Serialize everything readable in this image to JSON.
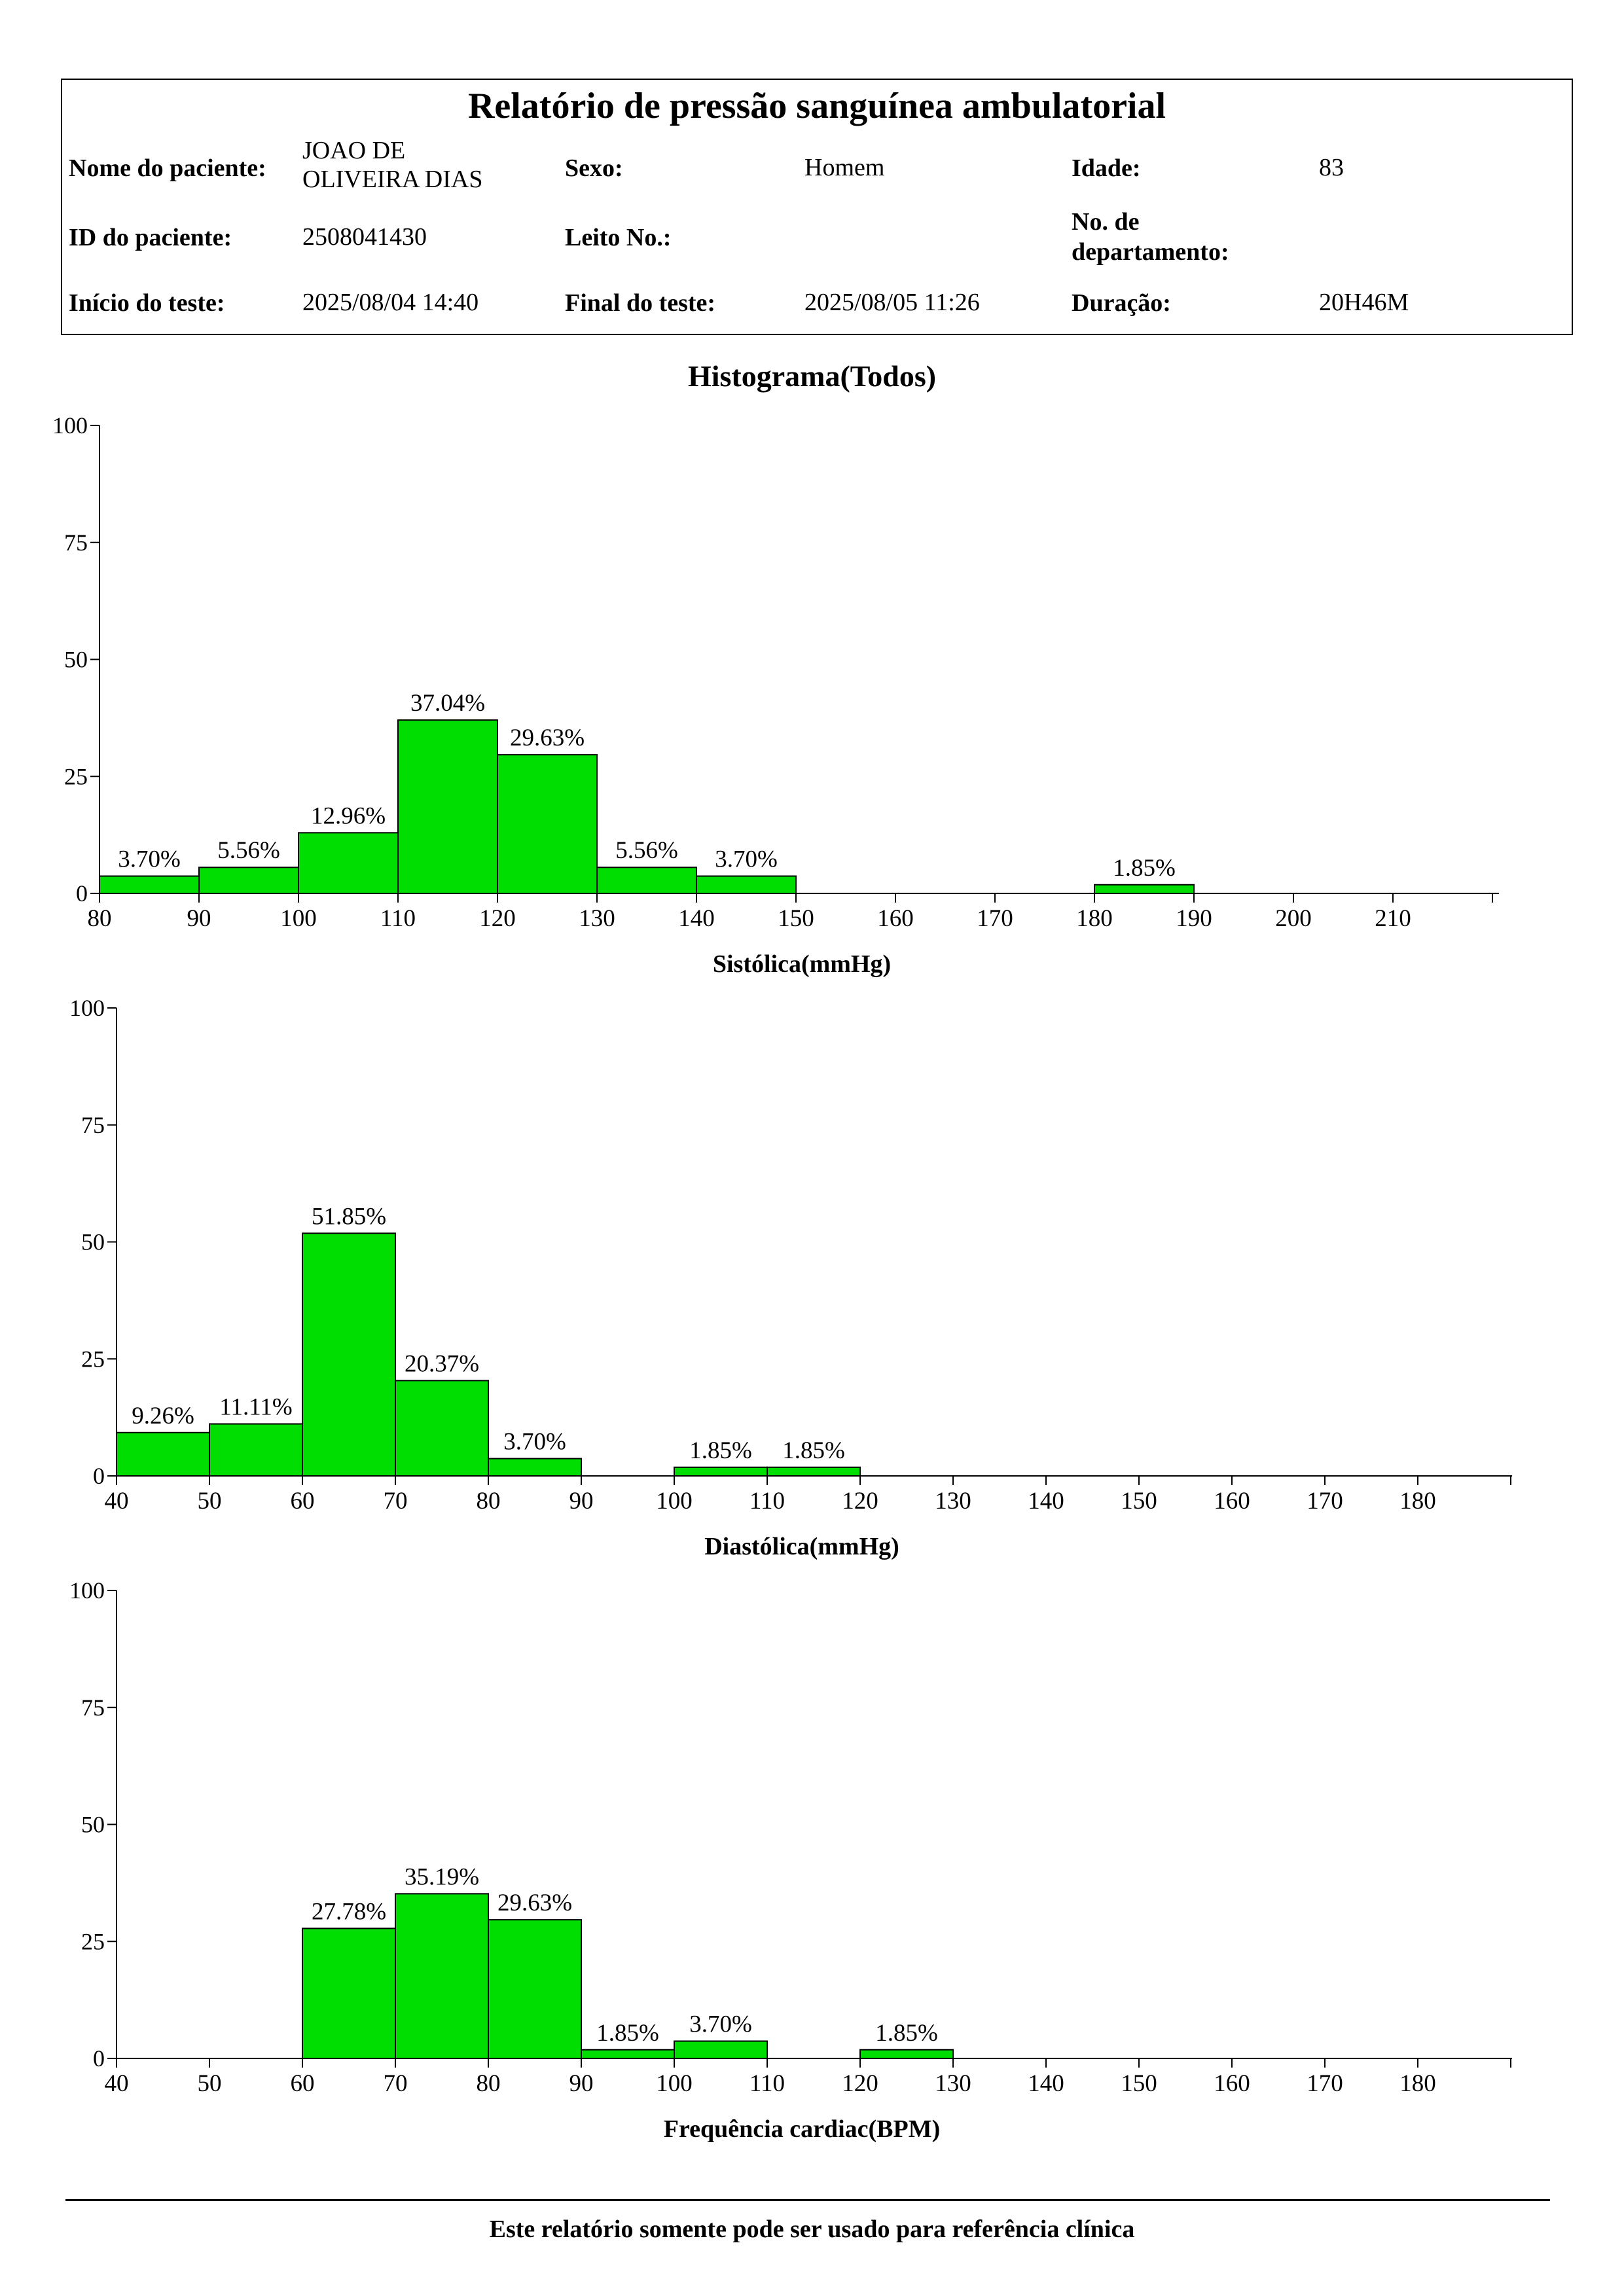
{
  "report": {
    "title": "Relatório de pressão sanguínea ambulatorial",
    "labels": {
      "patient_name": "Nome do paciente:",
      "sex": "Sexo:",
      "age": "Idade:",
      "patient_id": "ID do paciente:",
      "bed_no": "Leito No.:",
      "department_no": "No. de departamento:",
      "test_start": "Início do teste:",
      "test_end": "Final do teste:",
      "duration": "Duração:"
    },
    "values": {
      "patient_name": "JOAO DE OLIVEIRA DIAS",
      "sex": "Homem",
      "age": "83",
      "patient_id": "2508041430",
      "bed_no": "",
      "department_no": "",
      "test_start": "2025/08/04 14:40",
      "test_end": "2025/08/05 11:26",
      "duration": "20H46M"
    }
  },
  "histogram_title": "Histograma(Todos)",
  "footer": "Este relatório somente pode ser usado para referência clínica",
  "bar_color": "#00dd00",
  "chart_data": [
    {
      "type": "bar",
      "xlabel": "Sistólica(mmHg)",
      "ylabel": "",
      "ylim": [
        0,
        100
      ],
      "yticks": [
        0,
        25,
        50,
        75,
        100
      ],
      "xlim": [
        80,
        220
      ],
      "xticks": [
        80,
        90,
        100,
        110,
        120,
        130,
        140,
        150,
        160,
        170,
        180,
        190,
        200,
        210
      ],
      "bins": [
        {
          "from": 80,
          "to": 90,
          "value": 3.7,
          "label": "3.70%"
        },
        {
          "from": 90,
          "to": 100,
          "value": 5.56,
          "label": "5.56%"
        },
        {
          "from": 100,
          "to": 110,
          "value": 12.96,
          "label": "12.96%"
        },
        {
          "from": 110,
          "to": 120,
          "value": 37.04,
          "label": "37.04%"
        },
        {
          "from": 120,
          "to": 130,
          "value": 29.63,
          "label": "29.63%"
        },
        {
          "from": 130,
          "to": 140,
          "value": 5.56,
          "label": "5.56%"
        },
        {
          "from": 140,
          "to": 150,
          "value": 3.7,
          "label": "3.70%"
        },
        {
          "from": 180,
          "to": 190,
          "value": 1.85,
          "label": "1.85%"
        }
      ]
    },
    {
      "type": "bar",
      "xlabel": "Diastólica(mmHg)",
      "ylabel": "",
      "ylim": [
        0,
        100
      ],
      "yticks": [
        0,
        25,
        50,
        75,
        100
      ],
      "xlim": [
        40,
        190
      ],
      "xticks": [
        40,
        50,
        60,
        70,
        80,
        90,
        100,
        110,
        120,
        130,
        140,
        150,
        160,
        170,
        180
      ],
      "bins": [
        {
          "from": 40,
          "to": 50,
          "value": 9.26,
          "label": "9.26%"
        },
        {
          "from": 50,
          "to": 60,
          "value": 11.11,
          "label": "11.11%"
        },
        {
          "from": 60,
          "to": 70,
          "value": 51.85,
          "label": "51.85%"
        },
        {
          "from": 70,
          "to": 80,
          "value": 20.37,
          "label": "20.37%"
        },
        {
          "from": 80,
          "to": 90,
          "value": 3.7,
          "label": "3.70%"
        },
        {
          "from": 100,
          "to": 110,
          "value": 1.85,
          "label": "1.85%"
        },
        {
          "from": 110,
          "to": 120,
          "value": 1.85,
          "label": "1.85%"
        }
      ]
    },
    {
      "type": "bar",
      "xlabel": "Frequência cardiac(BPM)",
      "ylabel": "",
      "ylim": [
        0,
        100
      ],
      "yticks": [
        0,
        25,
        50,
        75,
        100
      ],
      "xlim": [
        40,
        190
      ],
      "xticks": [
        40,
        50,
        60,
        70,
        80,
        90,
        100,
        110,
        120,
        130,
        140,
        150,
        160,
        170,
        180
      ],
      "bins": [
        {
          "from": 60,
          "to": 70,
          "value": 27.78,
          "label": "27.78%"
        },
        {
          "from": 70,
          "to": 80,
          "value": 35.19,
          "label": "35.19%"
        },
        {
          "from": 80,
          "to": 90,
          "value": 29.63,
          "label": "29.63%"
        },
        {
          "from": 90,
          "to": 100,
          "value": 1.85,
          "label": "1.85%"
        },
        {
          "from": 100,
          "to": 110,
          "value": 3.7,
          "label": "3.70%"
        },
        {
          "from": 120,
          "to": 130,
          "value": 1.85,
          "label": "1.85%"
        }
      ]
    }
  ]
}
